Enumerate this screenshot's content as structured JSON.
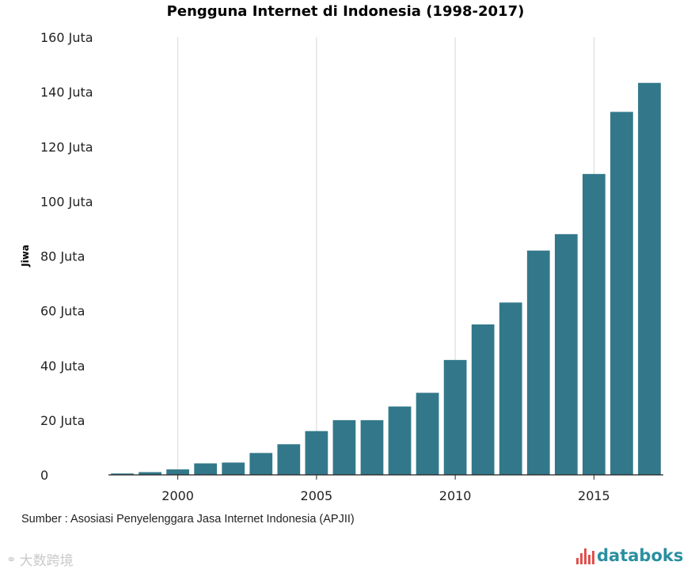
{
  "chart_data": {
    "type": "bar",
    "title": "Pengguna Internet di Indonesia (1998-2017)",
    "xlabel": "",
    "ylabel": "Jiwa",
    "x": [
      1998,
      1999,
      2000,
      2001,
      2002,
      2003,
      2004,
      2005,
      2006,
      2007,
      2008,
      2009,
      2010,
      2011,
      2012,
      2013,
      2014,
      2015,
      2016,
      2017
    ],
    "values": [
      0.5,
      1,
      2,
      4.2,
      4.5,
      8,
      11.2,
      16,
      20,
      20,
      25,
      30,
      42,
      55,
      63,
      82,
      88,
      110,
      132.7,
      143.3
    ],
    "unit": "Juta",
    "ylim": [
      0,
      160
    ],
    "yticks": [
      0,
      20,
      40,
      60,
      80,
      100,
      120,
      140,
      160
    ],
    "ytick_labels": [
      "0",
      "20 Juta",
      "40 Juta",
      "60 Juta",
      "80 Juta",
      "100 Juta",
      "120 Juta",
      "140 Juta",
      "160 Juta"
    ],
    "xticks": [
      2000,
      2005,
      2010,
      2015
    ],
    "xtick_labels": [
      "2000",
      "2005",
      "2010",
      "2015"
    ],
    "grid": "vertical",
    "bar_color": "#32788a",
    "source": "Sumber : Asosiasi Penyelenggara Jasa Internet Indonesia (APJII)"
  },
  "branding": {
    "logo_text": "databoks",
    "logo_color": "#2a8fa0",
    "logo_mark_color": "#e0524e",
    "watermark_text": "大数跨境"
  }
}
